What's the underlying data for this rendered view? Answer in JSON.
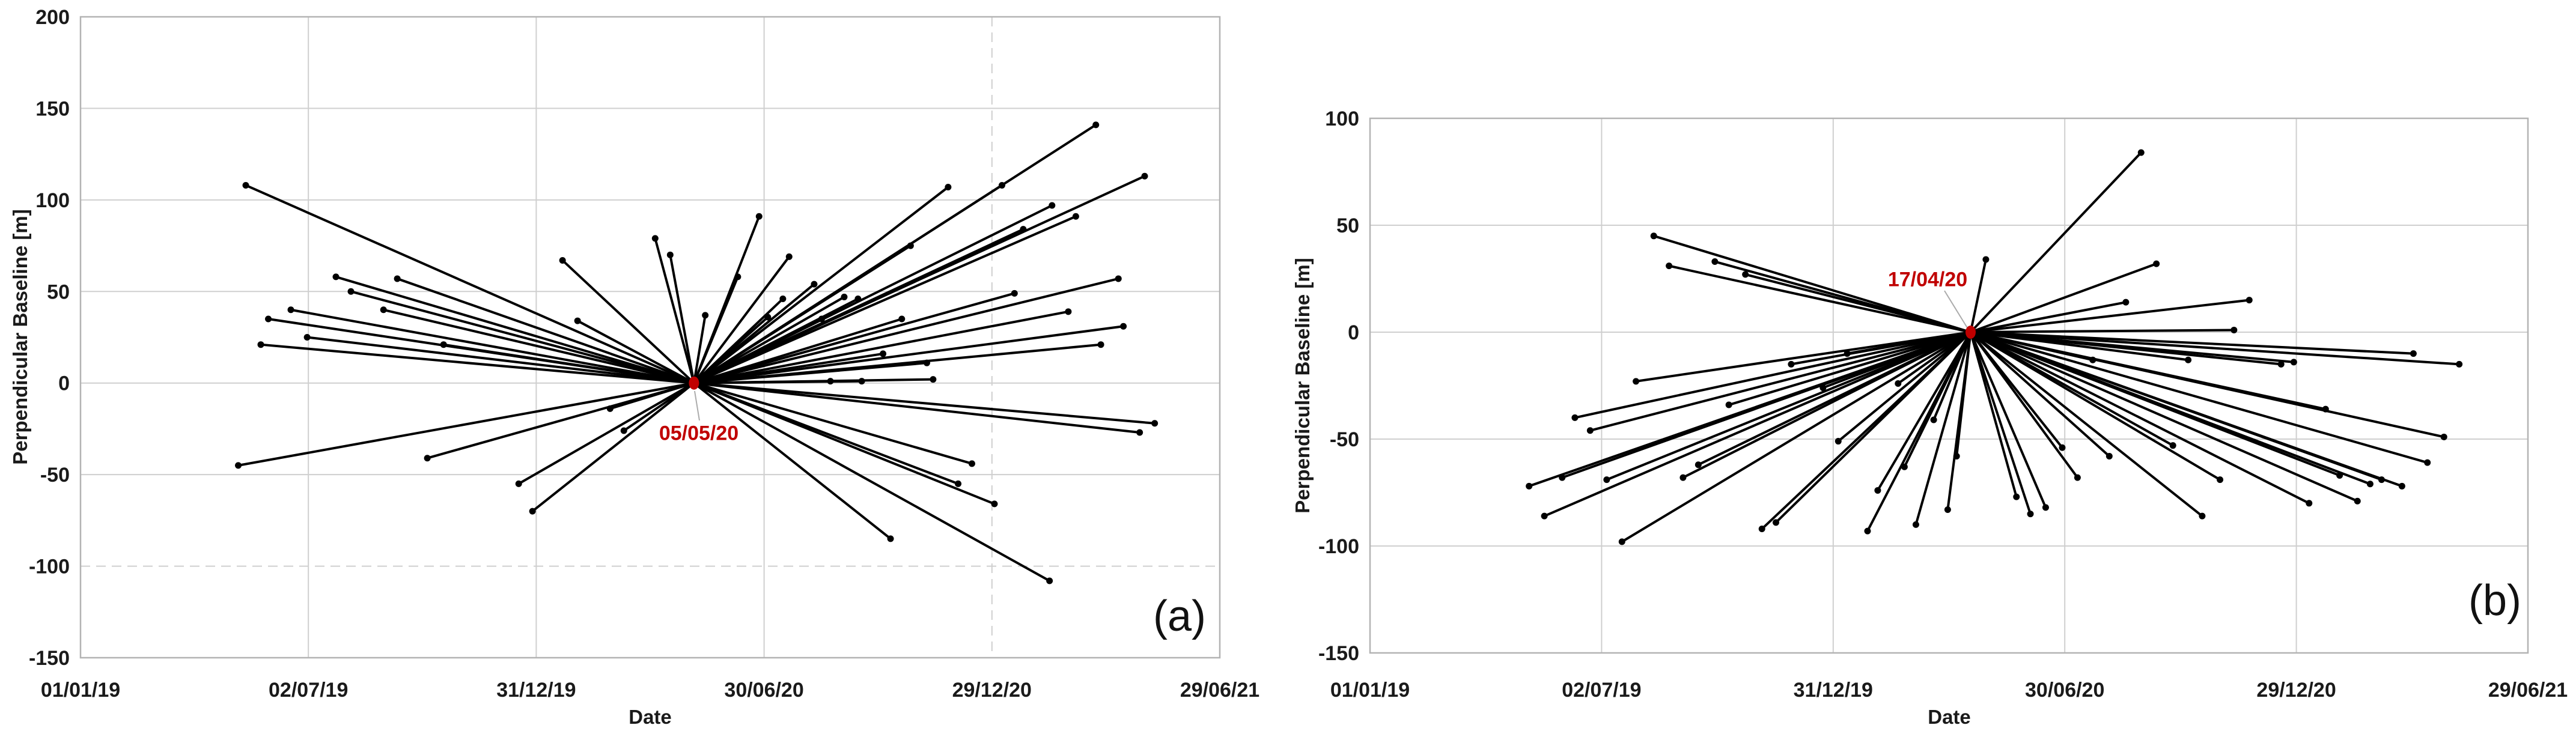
{
  "style": {
    "line_color": "#000000",
    "dot_color": "#000000",
    "grid_color": "#cfcfcf",
    "frame_color": "#b3b3b3",
    "text_color": "#1a1a1a",
    "accent_red": "#C00000",
    "leader_color": "#ababab",
    "background": "#ffffff"
  },
  "chart_data": [
    {
      "type": "scatter",
      "subtype": "sar-baseline-spider",
      "panel_label": "(a)",
      "xlabel": "Date",
      "ylabel": "Perpendicular Baseline [m]",
      "x_ticks": [
        "01/01/19",
        "02/07/19",
        "31/12/19",
        "30/06/20",
        "29/12/20",
        "29/06/21"
      ],
      "y_ticks": [
        200,
        150,
        100,
        50,
        0,
        -50,
        -100,
        -150
      ],
      "ylim": [
        -150,
        200
      ],
      "grid": {
        "on": true,
        "dashed_y_values": [
          -100
        ],
        "dashed_x_ticks": [
          "29/12/20"
        ],
        "legend": "none"
      },
      "master": {
        "date": "05/05/20",
        "label": "05/05/20",
        "baseline": 0
      },
      "points": [
        {
          "d": "13/05/19",
          "v": 108
        },
        {
          "d": "25/05/19",
          "v": 21
        },
        {
          "d": "31/05/19",
          "v": 35
        },
        {
          "d": "18/06/19",
          "v": 40
        },
        {
          "d": "01/07/19",
          "v": 25
        },
        {
          "d": "24/07/19",
          "v": 58
        },
        {
          "d": "05/08/19",
          "v": 50
        },
        {
          "d": "31/08/19",
          "v": 40
        },
        {
          "d": "11/09/19",
          "v": 57
        },
        {
          "d": "18/10/19",
          "v": 21
        },
        {
          "d": "21/01/20",
          "v": 67
        },
        {
          "d": "02/02/20",
          "v": 34
        },
        {
          "d": "04/04/20",
          "v": 79
        },
        {
          "d": "16/04/20",
          "v": 70
        },
        {
          "d": "14/05/20",
          "v": 37
        },
        {
          "d": "09/06/20",
          "v": 58
        },
        {
          "d": "26/06/20",
          "v": 91
        },
        {
          "d": "03/07/20",
          "v": 36
        },
        {
          "d": "15/07/20",
          "v": 46
        },
        {
          "d": "20/07/20",
          "v": 69
        },
        {
          "d": "09/08/20",
          "v": 54
        },
        {
          "d": "15/08/20",
          "v": 35
        },
        {
          "d": "22/08/20",
          "v": 1
        },
        {
          "d": "02/09/20",
          "v": 47
        },
        {
          "d": "13/09/20",
          "v": 46
        },
        {
          "d": "16/09/20",
          "v": 1
        },
        {
          "d": "03/10/20",
          "v": 16
        },
        {
          "d": "18/10/20",
          "v": 35
        },
        {
          "d": "25/10/20",
          "v": 75
        },
        {
          "d": "07/11/20",
          "v": 11
        },
        {
          "d": "12/11/20",
          "v": 2
        },
        {
          "d": "24/11/20",
          "v": 107
        },
        {
          "d": "06/01/21",
          "v": 108
        },
        {
          "d": "16/01/21",
          "v": 49
        },
        {
          "d": "23/01/21",
          "v": 84
        },
        {
          "d": "15/02/21",
          "v": 97
        },
        {
          "d": "28/02/21",
          "v": 39
        },
        {
          "d": "06/03/21",
          "v": 91
        },
        {
          "d": "22/03/21",
          "v": 141
        },
        {
          "d": "26/03/21",
          "v": 21
        },
        {
          "d": "09/04/21",
          "v": 57
        },
        {
          "d": "13/04/21",
          "v": 31
        },
        {
          "d": "30/04/21",
          "v": 113
        },
        {
          "d": "07/05/19",
          "v": -45
        },
        {
          "d": "05/10/19",
          "v": -41
        },
        {
          "d": "17/12/19",
          "v": -55
        },
        {
          "d": "28/12/19",
          "v": -70
        },
        {
          "d": "28/02/20",
          "v": -14
        },
        {
          "d": "10/03/20",
          "v": -26
        },
        {
          "d": "09/10/20",
          "v": -85
        },
        {
          "d": "02/12/20",
          "v": -55
        },
        {
          "d": "13/12/20",
          "v": -44
        },
        {
          "d": "31/12/20",
          "v": -66
        },
        {
          "d": "13/02/21",
          "v": -108
        },
        {
          "d": "26/04/21",
          "v": -27
        },
        {
          "d": "08/05/21",
          "v": -22
        }
      ]
    },
    {
      "type": "scatter",
      "subtype": "sar-baseline-spider",
      "panel_label": "(b)",
      "xlabel": "Date",
      "ylabel": "Perpendicular Baseline [m]",
      "x_ticks": [
        "01/01/19",
        "02/07/19",
        "31/12/19",
        "30/06/20",
        "29/12/20",
        "29/06/21"
      ],
      "y_ticks": [
        100,
        50,
        0,
        -50,
        -100,
        -150
      ],
      "ylim": [
        -150,
        100
      ],
      "grid": {
        "on": true,
        "dashed_y_values": [],
        "dashed_x_ticks": [],
        "legend": "none"
      },
      "master": {
        "date": "17/04/20",
        "label": "17/04/20",
        "baseline": 0
      },
      "points": [
        {
          "d": "12/08/19",
          "v": 45
        },
        {
          "d": "24/08/19",
          "v": 31
        },
        {
          "d": "29/09/19",
          "v": 33
        },
        {
          "d": "23/10/19",
          "v": 27
        },
        {
          "d": "29/04/20",
          "v": 34
        },
        {
          "d": "29/08/20",
          "v": 84
        },
        {
          "d": "10/09/20",
          "v": 32
        },
        {
          "d": "17/08/20",
          "v": 14
        },
        {
          "d": "22/11/20",
          "v": 15
        },
        {
          "d": "10/11/20",
          "v": 1
        },
        {
          "d": "22/07/20",
          "v": -13
        },
        {
          "d": "05/10/20",
          "v": -13
        },
        {
          "d": "17/12/20",
          "v": -15
        },
        {
          "d": "27/12/20",
          "v": -14
        },
        {
          "d": "31/03/21",
          "v": -10
        },
        {
          "d": "06/05/21",
          "v": -15
        },
        {
          "d": "28/11/19",
          "v": -15
        },
        {
          "d": "29/07/19",
          "v": -23
        },
        {
          "d": "10/10/19",
          "v": -34
        },
        {
          "d": "23/12/19",
          "v": -26
        },
        {
          "d": "11/01/20",
          "v": -10
        },
        {
          "d": "20/02/20",
          "v": -24
        },
        {
          "d": "19/03/20",
          "v": -41
        },
        {
          "d": "25/02/20",
          "v": -63
        },
        {
          "d": "04/01/20",
          "v": -51
        },
        {
          "d": "06/04/20",
          "v": -58
        },
        {
          "d": "11/06/19",
          "v": -40
        },
        {
          "d": "23/06/19",
          "v": -46
        },
        {
          "d": "06/05/19",
          "v": -72
        },
        {
          "d": "01/06/19",
          "v": -68
        },
        {
          "d": "18/05/19",
          "v": -86
        },
        {
          "d": "06/07/19",
          "v": -69
        },
        {
          "d": "18/07/19",
          "v": -98
        },
        {
          "d": "04/09/19",
          "v": -68
        },
        {
          "d": "16/09/19",
          "v": -62
        },
        {
          "d": "05/11/19",
          "v": -92
        },
        {
          "d": "16/11/19",
          "v": -89
        },
        {
          "d": "27/01/20",
          "v": -93
        },
        {
          "d": "04/02/20",
          "v": -74
        },
        {
          "d": "05/03/20",
          "v": -90
        },
        {
          "d": "30/03/20",
          "v": -83
        },
        {
          "d": "28/06/20",
          "v": -54
        },
        {
          "d": "10/07/20",
          "v": -68
        },
        {
          "d": "04/08/20",
          "v": -58
        },
        {
          "d": "23/05/20",
          "v": -77
        },
        {
          "d": "03/06/20",
          "v": -85
        },
        {
          "d": "15/06/20",
          "v": -82
        },
        {
          "d": "23/09/20",
          "v": -53
        },
        {
          "d": "16/10/20",
          "v": -86
        },
        {
          "d": "30/10/20",
          "v": -69
        },
        {
          "d": "08/01/21",
          "v": -80
        },
        {
          "d": "21/01/21",
          "v": -36
        },
        {
          "d": "01/02/21",
          "v": -67
        },
        {
          "d": "15/02/21",
          "v": -79
        },
        {
          "d": "25/02/21",
          "v": -71
        },
        {
          "d": "06/03/21",
          "v": -69
        },
        {
          "d": "22/03/21",
          "v": -72
        },
        {
          "d": "11/04/21",
          "v": -61
        },
        {
          "d": "24/04/21",
          "v": -49
        }
      ]
    }
  ]
}
